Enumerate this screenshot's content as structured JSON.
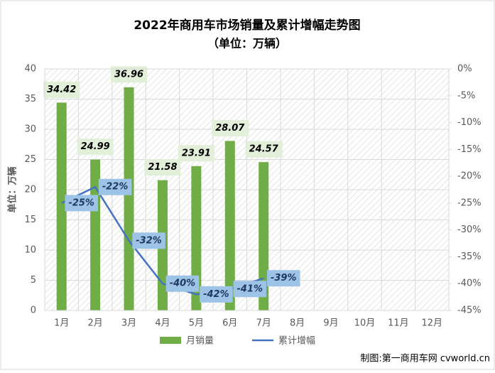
{
  "chart_data": {
    "type": "bar-line",
    "title": "2022年商用车市场销量及累计增幅走势图",
    "subtitle": "（单位：万辆）",
    "y_label": "单位：万辆",
    "source": "制图:第一商用车网 cvworld.cn",
    "categories": [
      "1月",
      "2月",
      "3月",
      "4月",
      "5月",
      "6月",
      "7月",
      "8月",
      "9月",
      "10月",
      "11月",
      "12月"
    ],
    "series": [
      {
        "name": "月销量",
        "type": "bar",
        "color": "#70ad47",
        "values": [
          34.42,
          24.99,
          36.96,
          21.58,
          23.91,
          28.07,
          24.57,
          null,
          null,
          null,
          null,
          null
        ]
      },
      {
        "name": "累计增幅",
        "type": "line",
        "axis": "y2",
        "color": "#4472c4",
        "values": [
          -25,
          -22,
          -32,
          -40,
          -42,
          -41,
          -39,
          null,
          null,
          null,
          null,
          null
        ],
        "value_labels": [
          "-25%",
          "-22%",
          "-32%",
          "-40%",
          "-42%",
          "-41%",
          "-39%",
          null,
          null,
          null,
          null,
          null
        ]
      }
    ],
    "ylim": [
      0,
      40
    ],
    "yticks": [
      0,
      5,
      10,
      15,
      20,
      25,
      30,
      35,
      40
    ],
    "y2lim": [
      -45,
      0
    ],
    "y2ticks": [
      {
        "value": 0,
        "label": "0%"
      },
      {
        "value": -5,
        "label": "-5%"
      },
      {
        "value": -10,
        "label": "-10%"
      },
      {
        "value": -15,
        "label": "-15%"
      },
      {
        "value": -20,
        "label": "-20%"
      },
      {
        "value": -25,
        "label": "-25%"
      },
      {
        "value": -30,
        "label": "-30%"
      },
      {
        "value": -35,
        "label": "-35%"
      },
      {
        "value": -40,
        "label": "-40%"
      },
      {
        "value": -45,
        "label": "-45%"
      }
    ],
    "grid": true
  }
}
